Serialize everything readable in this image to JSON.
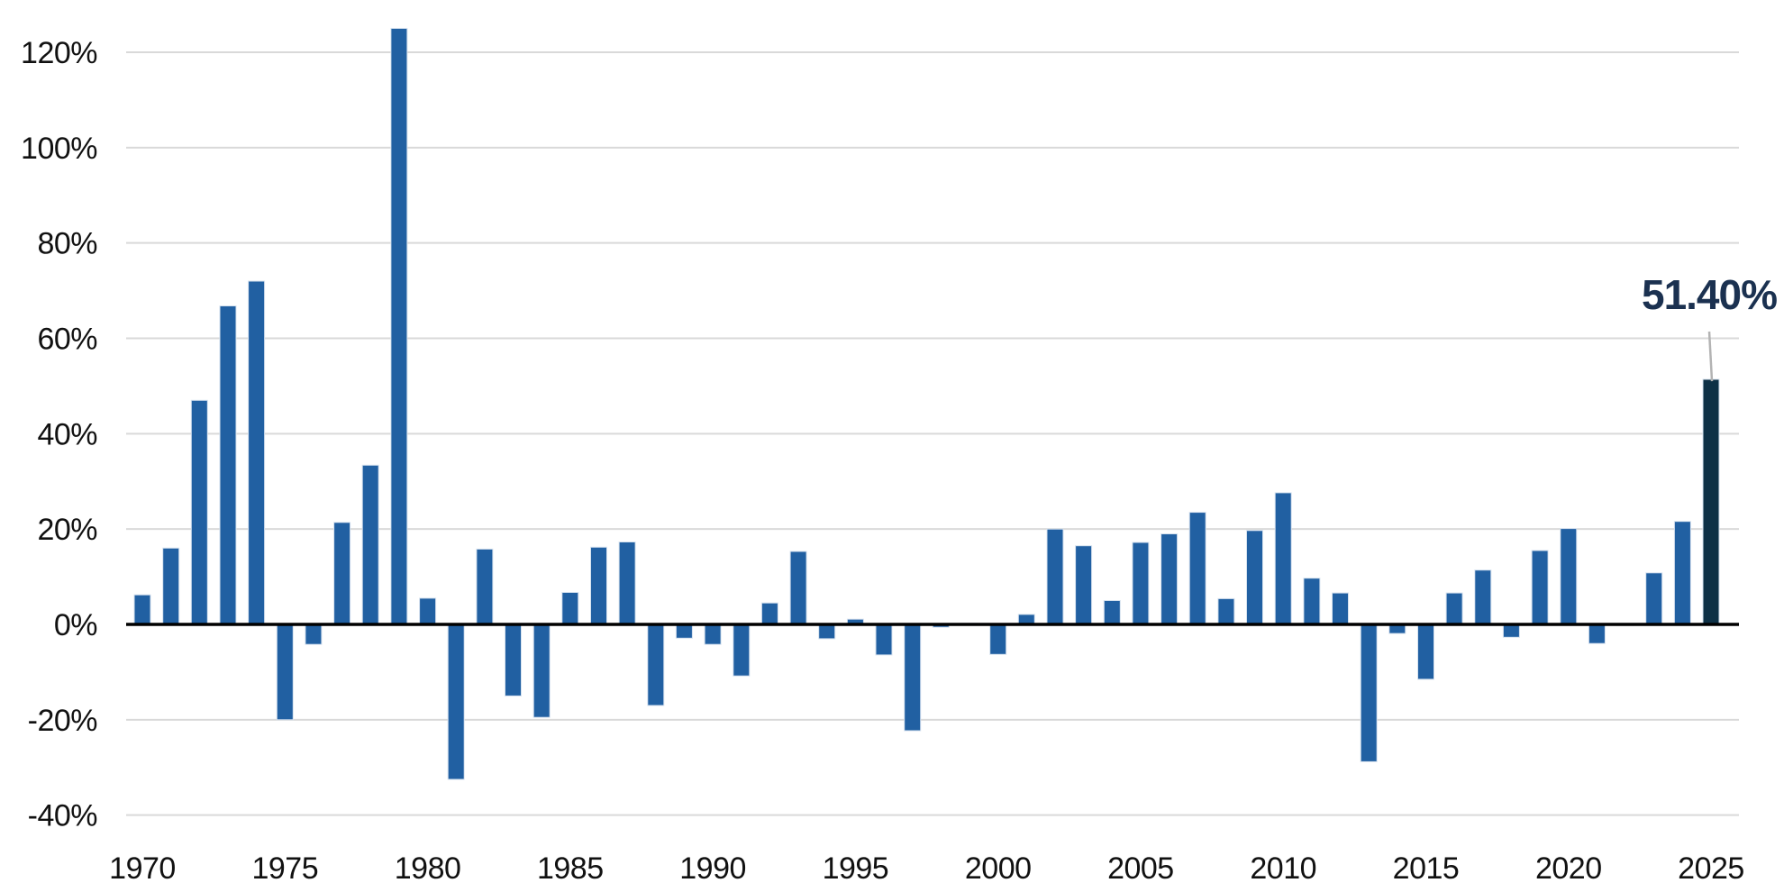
{
  "chart_data": {
    "type": "bar",
    "title": "",
    "xlabel": "",
    "ylabel": "",
    "categories": [
      "1970",
      "1971",
      "1972",
      "1973",
      "1974",
      "1975",
      "1976",
      "1977",
      "1978",
      "1979",
      "1980",
      "1981",
      "1982",
      "1983",
      "1984",
      "1985",
      "1986",
      "1987",
      "1988",
      "1989",
      "1990",
      "1991",
      "1992",
      "1993",
      "1994",
      "1995",
      "1996",
      "1997",
      "1998",
      "1999",
      "2000",
      "2001",
      "2002",
      "2003",
      "2004",
      "2005",
      "2006",
      "2007",
      "2008",
      "2009",
      "2010",
      "2011",
      "2012",
      "2013",
      "2014",
      "2015",
      "2016",
      "2017",
      "2018",
      "2019",
      "2020",
      "2021",
      "2022",
      "2023",
      "2024",
      "2025"
    ],
    "values": [
      6.2,
      16.0,
      47.0,
      66.8,
      72.0,
      -20.0,
      -4.2,
      21.4,
      33.4,
      125.0,
      5.5,
      -32.5,
      15.8,
      -15.0,
      -19.5,
      6.7,
      16.2,
      17.3,
      -17.0,
      -2.9,
      -4.2,
      -10.8,
      4.5,
      15.3,
      -3.0,
      1.1,
      -6.4,
      -22.3,
      -0.6,
      0.2,
      -6.3,
      2.1,
      20.0,
      16.5,
      5.0,
      17.2,
      19.0,
      23.5,
      5.4,
      19.7,
      27.6,
      9.7,
      6.6,
      -28.8,
      -1.9,
      -11.5,
      6.6,
      11.4,
      -2.7,
      15.5,
      20.1,
      -4.0,
      -0.2,
      10.8,
      21.6,
      51.4
    ],
    "y_ticks": [
      {
        "value": 120,
        "label": "120%"
      },
      {
        "value": 100,
        "label": "100%"
      },
      {
        "value": 80,
        "label": "80%"
      },
      {
        "value": 60,
        "label": "60%"
      },
      {
        "value": 40,
        "label": "40%"
      },
      {
        "value": 20,
        "label": "20%"
      },
      {
        "value": 0,
        "label": "0%"
      },
      {
        "value": -20,
        "label": "-20%"
      },
      {
        "value": -40,
        "label": "-40%"
      }
    ],
    "x_tick_labels": [
      "1970",
      "1975",
      "1980",
      "1985",
      "1990",
      "1995",
      "2000",
      "2005",
      "2010",
      "2015",
      "2020",
      "2025"
    ],
    "ylim": [
      -40,
      130
    ],
    "grid": true,
    "legend": "none",
    "annotation": {
      "text": "51.40%",
      "target_category": "2025"
    },
    "colors": {
      "bar": "#2160a2",
      "bar_edge": "#d6e2ef",
      "highlight_bar": "#0e3146",
      "annotation_text": "#1b3150",
      "leader_line": "#b3b3b3",
      "gridline": "#d9d9d9",
      "axis_line": "#000000",
      "tick_text": "#111111",
      "background": "#ffffff"
    }
  }
}
